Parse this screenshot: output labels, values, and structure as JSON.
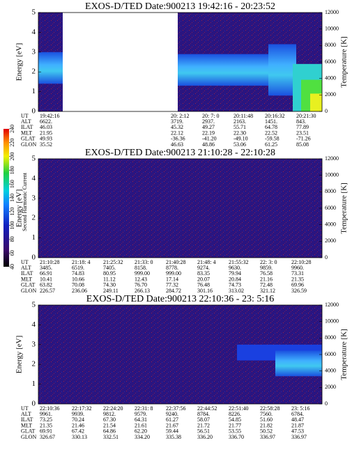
{
  "colorbar": {
    "label": "Second Harmonic Current",
    "lim": [
      40,
      240
    ],
    "ticks": [
      40,
      60,
      80,
      100,
      120,
      140,
      160,
      180,
      200,
      220,
      240
    ]
  },
  "chart_data": [
    {
      "type": "spectrogram",
      "title": "EXOS-D/TED   Date:900213  19:42:16 - 20:23:52",
      "ylabel": "Energy [eV]",
      "y2label": "Temperature [K]",
      "ylim": [
        0,
        5
      ],
      "yticks": [
        0,
        1,
        2,
        3,
        4,
        5
      ],
      "y2lim": [
        0,
        12000
      ],
      "y2ticks": [
        0,
        2000,
        4000,
        6000,
        8000,
        10000,
        12000
      ],
      "orbit": [
        {
          "label": "UT",
          "values": [
            "19:42:16",
            "20: 2:12",
            "20: 7: 0",
            "20:11:48",
            "20:16:32",
            "20:21:30"
          ]
        },
        {
          "label": "ALT",
          "values": [
            "6622.",
            "3719.",
            "2937.",
            "2163.",
            "1451.",
            "843."
          ]
        },
        {
          "label": "ILAT",
          "values": [
            "46.03",
            "45.32",
            "49.27",
            "55.71",
            "64.78",
            "77.89"
          ]
        },
        {
          "label": "MLT",
          "values": [
            "21.95",
            "22.12",
            "22.19",
            "22.30",
            "22.52",
            "23.51"
          ]
        },
        {
          "label": "GLAT",
          "values": [
            "49.93",
            "-36.36",
            "-41.20",
            "-49.10",
            "-59.58",
            "-71.26"
          ]
        },
        {
          "label": "GLON",
          "values": [
            "35.52",
            "46.63",
            "48.86",
            "53.06",
            "61.25",
            "85.08"
          ]
        }
      ]
    },
    {
      "type": "spectrogram",
      "title": "EXOS-D/TED   Date:900213  21:10:28 - 22:10:28",
      "ylabel": "Energy [eV]",
      "y2label": "Temperature [K]",
      "ylim": [
        0,
        5
      ],
      "yticks": [
        0,
        1,
        2,
        3,
        4,
        5
      ],
      "y2lim": [
        0,
        12000
      ],
      "y2ticks": [
        0,
        2000,
        4000,
        6000,
        8000,
        10000,
        12000
      ],
      "orbit": [
        {
          "label": "UT",
          "values": [
            "21:10:28",
            "21:18: 4",
            "21:25:32",
            "21:33: 0",
            "21:40:28",
            "21:48: 4",
            "21:55:32",
            "22: 3: 0",
            "22:10:28"
          ]
        },
        {
          "label": "ALT",
          "values": [
            "3485.",
            "6519.",
            "7405.",
            "8158.",
            "8778.",
            "9274.",
            "9630.",
            "9859.",
            "9960."
          ]
        },
        {
          "label": "ILAT",
          "values": [
            "66.91",
            "74.83",
            "80.95",
            "999.00",
            "999.00",
            "83.35",
            "79.94",
            "76.58",
            "73.31"
          ]
        },
        {
          "label": "MLT",
          "values": [
            "10.41",
            "10.66",
            "11.12",
            "12.43",
            "17.14",
            "20.07",
            "20.84",
            "21.16",
            "21.35"
          ]
        },
        {
          "label": "GLAT",
          "values": [
            "63.82",
            "70.08",
            "74.30",
            "76.70",
            "77.32",
            "76.48",
            "74.73",
            "72.48",
            "69.96"
          ]
        },
        {
          "label": "GLON",
          "values": [
            "226.57",
            "236.06",
            "249.11",
            "266.13",
            "284.72",
            "301.16",
            "313.02",
            "321.12",
            "326.59"
          ]
        }
      ]
    },
    {
      "type": "spectrogram",
      "title": "EXOS-D/TED   Date:900213  22:10:36 - 23: 5:16",
      "ylabel": "Energy [eV]",
      "y2label": "Temperature [K]",
      "ylim": [
        0,
        5
      ],
      "yticks": [
        0,
        1,
        2,
        3,
        4,
        5
      ],
      "y2lim": [
        0,
        12000
      ],
      "y2ticks": [
        0,
        2000,
        4000,
        6000,
        8000,
        10000,
        12000
      ],
      "orbit": [
        {
          "label": "UT",
          "values": [
            "22:10:36",
            "22:17:32",
            "22:24:20",
            "22:31: 8",
            "22:37:56",
            "22:44:52",
            "22:51:40",
            "22:58:28",
            "23: 5:16"
          ]
        },
        {
          "label": "ALT",
          "values": [
            "9961.",
            "9939.",
            "9812.",
            "9579.",
            "9240.",
            "8784.",
            "8226.",
            "7560.",
            "6784."
          ]
        },
        {
          "label": "ILAT",
          "values": [
            "73.25",
            "70.24",
            "67.30",
            "64.31",
            "61.27",
            "58.07",
            "54.85",
            "51.60",
            "48.47"
          ]
        },
        {
          "label": "MLT",
          "values": [
            "21.35",
            "21.46",
            "21.54",
            "21.61",
            "21.67",
            "21.72",
            "21.77",
            "21.82",
            "21.87"
          ]
        },
        {
          "label": "GLAT",
          "values": [
            "69.91",
            "67.42",
            "64.86",
            "62.20",
            "59.44",
            "56.51",
            "53.55",
            "50.52",
            "47.53"
          ]
        },
        {
          "label": "GLON",
          "values": [
            "326.67",
            "330.13",
            "332.51",
            "334.20",
            "335.38",
            "336.20",
            "336.70",
            "336.97",
            "336.97"
          ]
        }
      ]
    }
  ]
}
